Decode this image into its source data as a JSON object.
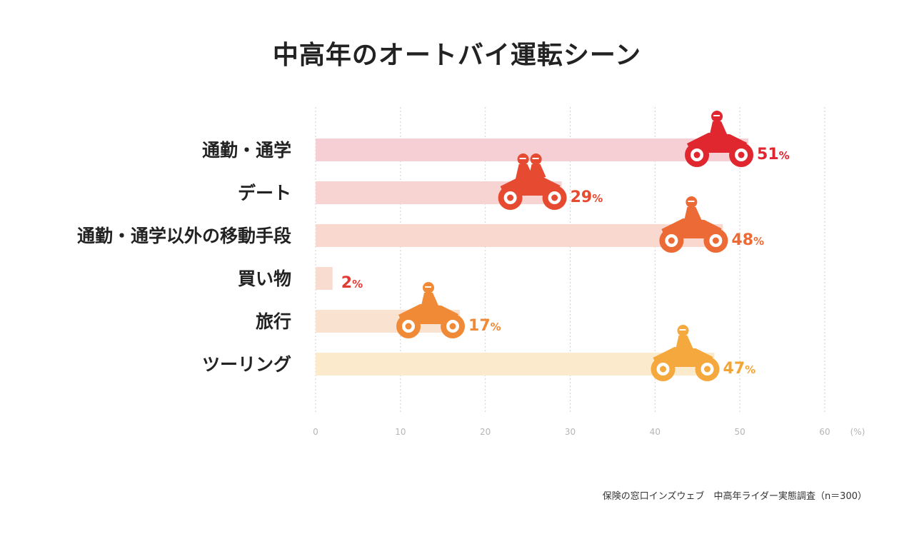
{
  "chart_data": {
    "type": "bar",
    "orientation": "horizontal",
    "title": "中高年のオートバイ運転シーン",
    "categories": [
      "通勤・通学",
      "デート",
      "通勤・通学以外の移動手段",
      "買い物",
      "旅行",
      "ツーリング"
    ],
    "values": [
      51,
      29,
      48,
      2,
      17,
      47
    ],
    "value_labels": [
      "51",
      "29",
      "48",
      "2",
      "17",
      "47"
    ],
    "value_unit": "%",
    "xlim": [
      0,
      60
    ],
    "x_ticks": [
      "0",
      "10",
      "20",
      "30",
      "40",
      "50",
      "60"
    ],
    "x_unit_label": "(%)",
    "grid": "vertical dashed",
    "legend": "none",
    "colors": {
      "bars": [
        "#f5cfd4",
        "#f7d3d2",
        "#f8d8cf",
        "#f9dcd0",
        "#fae2d0",
        "#fbeacc"
      ],
      "icons": [
        "#e0262f",
        "#e64a30",
        "#ec6a35",
        "#ec6a35",
        "#f08a36",
        "#f5a83d"
      ],
      "labels": [
        "#e0262f",
        "#e64a30",
        "#ec6a35",
        "#e23a35",
        "#f08a36",
        "#f2a532"
      ]
    },
    "icons": [
      "motorcycle-rider-icon",
      "motorcycle-tandem-icon",
      "motorcycle-rider-icon",
      "",
      "motorcycle-rider-icon",
      "motorcycle-rider-icon"
    ]
  },
  "source": "保険の窓口インズウェブ　中高年ライダー実態調査（n＝300）"
}
